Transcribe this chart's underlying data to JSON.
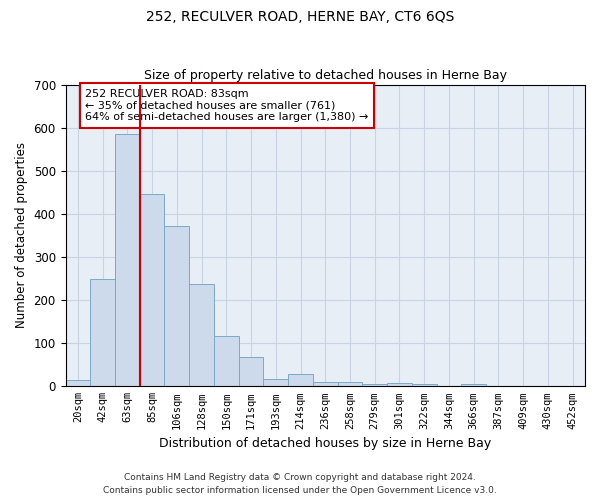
{
  "title": "252, RECULVER ROAD, HERNE BAY, CT6 6QS",
  "subtitle": "Size of property relative to detached houses in Herne Bay",
  "xlabel": "Distribution of detached houses by size in Herne Bay",
  "ylabel": "Number of detached properties",
  "bar_labels": [
    "20sqm",
    "42sqm",
    "63sqm",
    "85sqm",
    "106sqm",
    "128sqm",
    "150sqm",
    "171sqm",
    "193sqm",
    "214sqm",
    "236sqm",
    "258sqm",
    "279sqm",
    "301sqm",
    "322sqm",
    "344sqm",
    "366sqm",
    "387sqm",
    "409sqm",
    "430sqm",
    "452sqm"
  ],
  "bar_values": [
    15,
    248,
    585,
    445,
    372,
    237,
    117,
    68,
    18,
    28,
    10,
    10,
    6,
    7,
    6,
    0,
    6,
    0,
    0,
    0,
    0
  ],
  "bar_color": "#ccdaeb",
  "bar_edge_color": "#7aaac8",
  "highlight_index": 3,
  "highlight_line_color": "#cc0000",
  "ylim": [
    0,
    700
  ],
  "yticks": [
    0,
    100,
    200,
    300,
    400,
    500,
    600,
    700
  ],
  "annotation_text": "252 RECULVER ROAD: 83sqm\n← 35% of detached houses are smaller (761)\n64% of semi-detached houses are larger (1,380) →",
  "annotation_box_color": "#ffffff",
  "annotation_box_edge": "#cc0000",
  "footer1": "Contains HM Land Registry data © Crown copyright and database right 2024.",
  "footer2": "Contains public sector information licensed under the Open Government Licence v3.0.",
  "grid_color": "#c8d4e4",
  "background_color": "#e8eef6"
}
